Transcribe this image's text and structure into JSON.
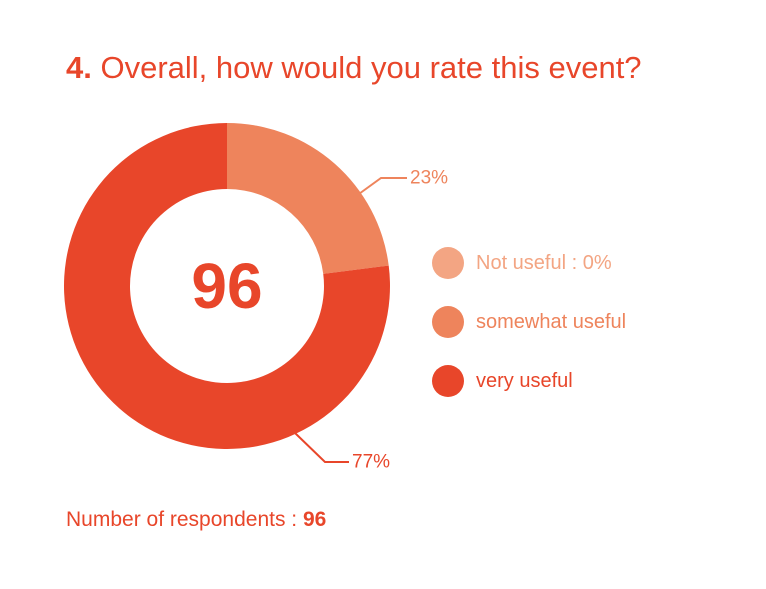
{
  "question": {
    "number": "4.",
    "text": "Overall, how would you rate this event?"
  },
  "chart_data": {
    "type": "pie",
    "variant": "donut",
    "title": "4. Overall, how would you rate this event?",
    "center_value": "96",
    "slices": [
      {
        "label": "Not useful",
        "legend": "Not useful : 0%",
        "value": 0,
        "percent_label": "",
        "color": "#f3a583"
      },
      {
        "label": "somewhat useful",
        "legend": "somewhat useful",
        "value": 23,
        "percent_label": "23%",
        "color": "#ee845c"
      },
      {
        "label": "very useful",
        "legend": "very useful",
        "value": 77,
        "percent_label": "77%",
        "color": "#e8462a"
      }
    ],
    "legend_position": "right"
  },
  "footer": {
    "respondents_label": "Number of respondents :",
    "respondents_value": "96"
  },
  "colors": {
    "accent": "#e8462a",
    "medium": "#ee845c",
    "light": "#f3a583"
  }
}
